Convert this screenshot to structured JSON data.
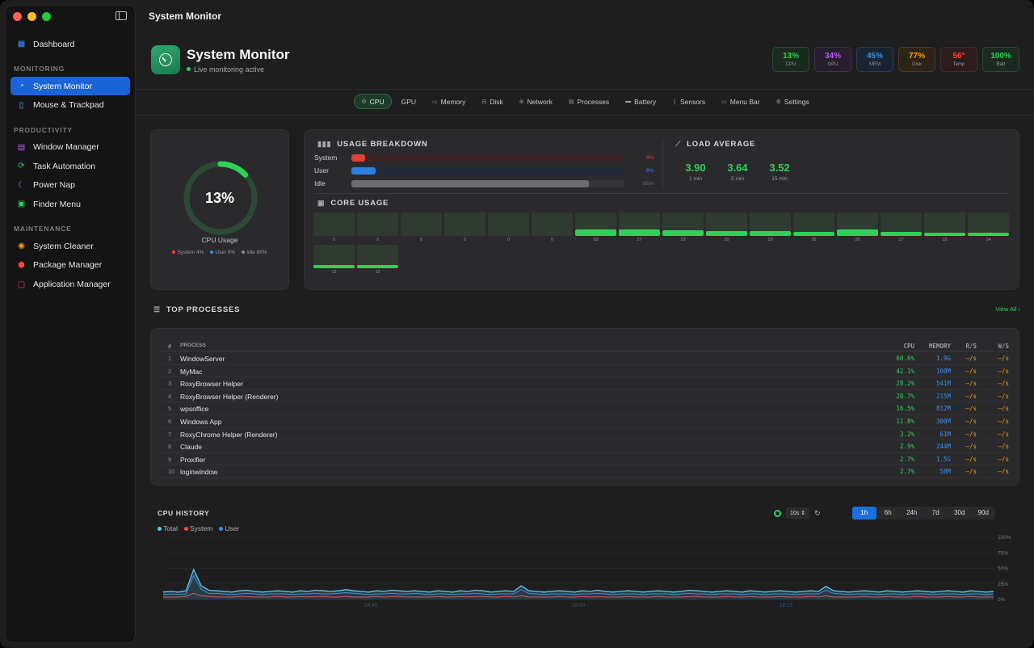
{
  "window": {
    "title": "System Monitor"
  },
  "sidebar": {
    "top_items": [
      {
        "label": "Dashboard",
        "icon": "grid-icon",
        "color": "#3a8fef"
      }
    ],
    "sections": [
      {
        "title": "MONITORING",
        "items": [
          {
            "label": "System Monitor",
            "icon": "gauge-icon",
            "color": "#ffffff",
            "active": true
          },
          {
            "label": "Mouse & Trackpad",
            "icon": "mouse-icon",
            "color": "#5ac8fa"
          }
        ]
      },
      {
        "title": "PRODUCTIVITY",
        "items": [
          {
            "label": "Window Manager",
            "icon": "window-icon",
            "color": "#bf5af2"
          },
          {
            "label": "Task Automation",
            "icon": "automation-icon",
            "color": "#30d158"
          },
          {
            "label": "Power Nap",
            "icon": "moon-icon",
            "color": "#bf5af2"
          },
          {
            "label": "Finder Menu",
            "icon": "finder-icon",
            "color": "#30d158"
          }
        ]
      },
      {
        "title": "MAINTENANCE",
        "items": [
          {
            "label": "System Cleaner",
            "icon": "cleaner-icon",
            "color": "#ff9f0a"
          },
          {
            "label": "Package Manager",
            "icon": "package-icon",
            "color": "#ff453a"
          },
          {
            "label": "Application Manager",
            "icon": "apps-icon",
            "color": "#ff375f"
          }
        ]
      }
    ]
  },
  "header": {
    "title": "System Monitor",
    "subtitle": "Live monitoring active"
  },
  "stat_pills": [
    {
      "value": "13%",
      "label": "CPU",
      "color": "#30d158",
      "bg": "#1b2a1f",
      "border": "#2a4a33"
    },
    {
      "value": "34%",
      "label": "GPU",
      "color": "#bf5af2",
      "bg": "#271d2d",
      "border": "#44304f"
    },
    {
      "value": "45%",
      "label": "MEM",
      "color": "#3a8fef",
      "bg": "#1a2331",
      "border": "#2a3c57"
    },
    {
      "value": "77%",
      "label": "Disk",
      "color": "#ff9f0a",
      "bg": "#2d2419",
      "border": "#4d3a24"
    },
    {
      "value": "56°",
      "label": "Temp",
      "color": "#ff453a",
      "bg": "#2d1c1c",
      "border": "#4a2a2a"
    },
    {
      "value": "100%",
      "label": "Batt",
      "color": "#30d158",
      "bg": "#1b2a1f",
      "border": "#2a4a33"
    }
  ],
  "tabs": [
    {
      "label": "CPU",
      "icon": "cpu-icon",
      "active": true
    },
    {
      "label": "GPU",
      "icon": "",
      "active": false
    },
    {
      "label": "Memory",
      "icon": "memory-icon",
      "active": false
    },
    {
      "label": "Disk",
      "icon": "disk-icon",
      "active": false
    },
    {
      "label": "Network",
      "icon": "network-icon",
      "active": false
    },
    {
      "label": "Processes",
      "icon": "processes-icon",
      "active": false
    },
    {
      "label": "Battery",
      "icon": "battery-icon",
      "active": false
    },
    {
      "label": "Sensors",
      "icon": "sensors-icon",
      "active": false
    },
    {
      "label": "Menu Bar",
      "icon": "menubar-icon",
      "active": false
    },
    {
      "label": "Settings",
      "icon": "settings-icon",
      "active": false
    }
  ],
  "cpu_card": {
    "value": "13%",
    "fraction": 0.13,
    "label": "CPU Usage",
    "legend": [
      {
        "text": "System 4%",
        "color": "#ff453a"
      },
      {
        "text": "User 8%",
        "color": "#3a8fef"
      },
      {
        "text": "Idle 86%",
        "color": "#8e8e93"
      }
    ]
  },
  "usage_breakdown": {
    "title": "USAGE BREAKDOWN",
    "rows": [
      {
        "label": "System",
        "pct": "4%",
        "fraction": 0.05,
        "color": "#e0403a",
        "track": "#3a2526"
      },
      {
        "label": "User",
        "pct": "8%",
        "fraction": 0.09,
        "color": "#2f7fe0",
        "track": "#1f2b3b"
      },
      {
        "label": "Idle",
        "pct": "86%",
        "fraction": 0.87,
        "color": "#6c6c70",
        "track": "#363638"
      }
    ]
  },
  "load_average": {
    "title": "LOAD AVERAGE",
    "items": [
      {
        "value": "3.90",
        "label": "1 min"
      },
      {
        "value": "3.64",
        "label": "5 min"
      },
      {
        "value": "3.52",
        "label": "15 min"
      }
    ]
  },
  "core_usage": {
    "title": "CORE USAGE",
    "cores": [
      0,
      0,
      0,
      0,
      0,
      0,
      29,
      27,
      23,
      20,
      19,
      16,
      26,
      17,
      15,
      14,
      13,
      12
    ]
  },
  "top_processes": {
    "title": "TOP PROCESSES",
    "view_all": "View All",
    "columns": {
      "num": "#",
      "name": "PROCESS",
      "cpu": "CPU",
      "mem": "MEMORY",
      "r": "R/S",
      "w": "W/S"
    },
    "rows": [
      {
        "num": "1",
        "name": "WindowServer",
        "cpu": "60.6%",
        "mem": "1.9G",
        "r": "–/s",
        "w": "–/s"
      },
      {
        "num": "2",
        "name": "MyMac",
        "cpu": "42.1%",
        "mem": "160M",
        "r": "–/s",
        "w": "–/s"
      },
      {
        "num": "3",
        "name": "RoxyBrowser Helper",
        "cpu": "28.2%",
        "mem": "541M",
        "r": "–/s",
        "w": "–/s"
      },
      {
        "num": "4",
        "name": "RoxyBrowser Helper (Renderer)",
        "cpu": "20.7%",
        "mem": "215M",
        "r": "–/s",
        "w": "–/s"
      },
      {
        "num": "5",
        "name": "wpsoffice",
        "cpu": "16.5%",
        "mem": "812M",
        "r": "–/s",
        "w": "–/s"
      },
      {
        "num": "6",
        "name": "Windows App",
        "cpu": "11.8%",
        "mem": "300M",
        "r": "–/s",
        "w": "–/s"
      },
      {
        "num": "7",
        "name": "RoxyChrome Helper (Renderer)",
        "cpu": "3.2%",
        "mem": "61M",
        "r": "–/s",
        "w": "–/s"
      },
      {
        "num": "8",
        "name": "Claude",
        "cpu": "2.9%",
        "mem": "244M",
        "r": "–/s",
        "w": "–/s"
      },
      {
        "num": "9",
        "name": "Proxifier",
        "cpu": "2.7%",
        "mem": "1.5G",
        "r": "–/s",
        "w": "–/s"
      },
      {
        "num": "10",
        "name": "loginwindow",
        "cpu": "2.7%",
        "mem": "58M",
        "r": "–/s",
        "w": "–/s"
      }
    ]
  },
  "cpu_history": {
    "title": "CPU HISTORY",
    "interval": "10s",
    "ranges": [
      {
        "label": "1h",
        "active": true
      },
      {
        "label": "6h",
        "active": false
      },
      {
        "label": "24h",
        "active": false
      },
      {
        "label": "7d",
        "active": false
      },
      {
        "label": "30d",
        "active": false
      },
      {
        "label": "90d",
        "active": false
      }
    ]
  },
  "chart_data": {
    "type": "line",
    "title": "CPU HISTORY",
    "xlabel": "",
    "ylabel": "",
    "ylim": [
      0,
      100
    ],
    "y_ticks": [
      "100%",
      "75%",
      "50%",
      "25%",
      "0%"
    ],
    "x_ticks": [
      "18:45",
      "19:00",
      "19:15"
    ],
    "x_tick_fractions": [
      0.25,
      0.5,
      0.75
    ],
    "legend": "top-left",
    "series": [
      {
        "name": "Total",
        "color": "#5ac8fa",
        "values": [
          12,
          13,
          12,
          14,
          48,
          22,
          15,
          14,
          13,
          12,
          14,
          15,
          13,
          12,
          13,
          14,
          13,
          12,
          14,
          13,
          15,
          14,
          13,
          14,
          16,
          14,
          13,
          12,
          14,
          13,
          15,
          14,
          13,
          14,
          13,
          12,
          14,
          13,
          12,
          14,
          13,
          15,
          14,
          12,
          13,
          14,
          13,
          22,
          14,
          13,
          12,
          13,
          14,
          13,
          12,
          14,
          13,
          15,
          13,
          12,
          13,
          14,
          13,
          12,
          13,
          14,
          13,
          12,
          13,
          15,
          14,
          13,
          12,
          13,
          14,
          13,
          12,
          14,
          13,
          12,
          13,
          14,
          13,
          12,
          13,
          14,
          13,
          21,
          14,
          13,
          12,
          13,
          14,
          13,
          12,
          14,
          13,
          12,
          13,
          14,
          13,
          12,
          13,
          14,
          13,
          12,
          14,
          13,
          12,
          13
        ]
      },
      {
        "name": "System",
        "color": "#ff453a",
        "values": [
          4,
          4,
          4,
          5,
          10,
          6,
          5,
          4,
          4,
          4,
          5,
          5,
          4,
          4,
          4,
          5,
          4,
          4,
          5,
          4,
          5,
          5,
          4,
          4,
          5,
          4,
          4,
          4,
          5,
          4,
          5,
          5,
          4,
          4,
          4,
          4,
          5,
          4,
          4,
          5,
          4,
          5,
          5,
          4,
          4,
          5,
          4,
          6,
          4,
          4,
          4,
          4,
          5,
          4,
          4,
          5,
          4,
          5,
          4,
          4,
          4,
          5,
          4,
          4,
          4,
          5,
          4,
          4,
          4,
          5,
          5,
          4,
          4,
          4,
          5,
          4,
          4,
          5,
          4,
          4,
          4,
          5,
          4,
          4,
          4,
          5,
          4,
          6,
          4,
          4,
          4,
          4,
          5,
          4,
          4,
          5,
          4,
          4,
          4,
          5,
          4,
          4,
          4,
          5,
          4,
          4,
          5,
          4,
          4,
          4
        ]
      },
      {
        "name": "User",
        "color": "#3a8fef",
        "values": [
          8,
          9,
          8,
          9,
          38,
          16,
          10,
          10,
          9,
          8,
          9,
          10,
          9,
          8,
          9,
          9,
          9,
          8,
          9,
          9,
          10,
          9,
          9,
          10,
          11,
          10,
          9,
          8,
          9,
          9,
          10,
          9,
          9,
          10,
          9,
          8,
          9,
          9,
          8,
          9,
          9,
          10,
          9,
          8,
          9,
          9,
          9,
          16,
          10,
          9,
          8,
          9,
          9,
          9,
          8,
          9,
          9,
          10,
          9,
          8,
          9,
          9,
          9,
          8,
          9,
          9,
          9,
          8,
          9,
          10,
          9,
          9,
          8,
          9,
          9,
          9,
          8,
          9,
          9,
          8,
          9,
          9,
          9,
          8,
          9,
          9,
          9,
          15,
          10,
          9,
          8,
          9,
          9,
          9,
          8,
          9,
          9,
          8,
          9,
          9,
          9,
          8,
          9,
          9,
          9,
          8,
          9,
          9,
          8,
          9
        ]
      }
    ]
  }
}
